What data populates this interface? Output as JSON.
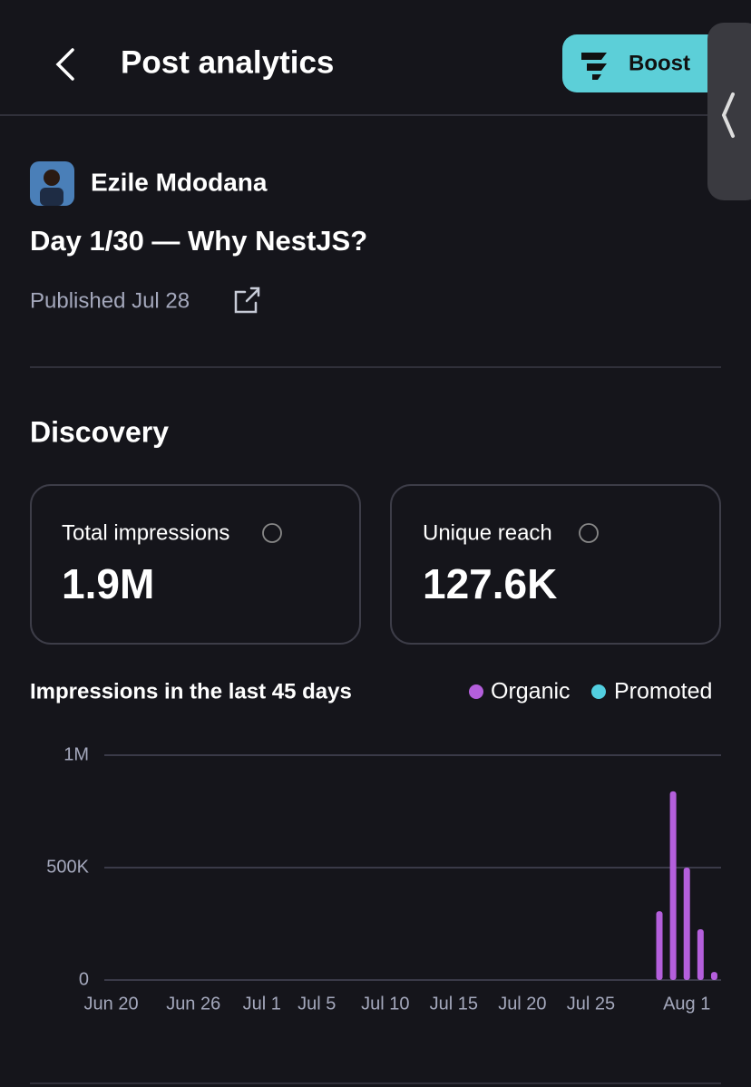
{
  "header": {
    "title": "Post analytics",
    "boost": "Boost"
  },
  "post": {
    "author": "Ezile Mdodana",
    "title": "Day 1/30 — Why NestJS?",
    "published": "Published Jul 28"
  },
  "discovery": {
    "title": "Discovery",
    "metrics": [
      {
        "label": "Total impressions",
        "value": "1.9M"
      },
      {
        "label": "Unique reach",
        "value": "127.6K"
      }
    ]
  },
  "chart_data": {
    "type": "bar",
    "title": "Impressions in the last 45 days",
    "categories": [
      "Jun 20",
      null,
      null,
      null,
      null,
      null,
      "Jun 26",
      null,
      null,
      null,
      null,
      "Jul 1",
      null,
      null,
      null,
      "Jul 5",
      null,
      null,
      null,
      null,
      "Jul 10",
      null,
      null,
      null,
      null,
      "Jul 15",
      null,
      null,
      null,
      null,
      "Jul 20",
      null,
      null,
      null,
      null,
      "Jul 25",
      null,
      null,
      null,
      null,
      null,
      null,
      "Aug 1",
      null,
      null
    ],
    "series": [
      {
        "name": "Organic",
        "color": "#b45fdc",
        "values": [
          0,
          0,
          0,
          0,
          0,
          0,
          0,
          0,
          0,
          0,
          0,
          0,
          0,
          0,
          0,
          0,
          0,
          0,
          0,
          0,
          0,
          0,
          0,
          0,
          0,
          0,
          0,
          0,
          0,
          0,
          0,
          0,
          0,
          0,
          0,
          0,
          0,
          0,
          0,
          0,
          306000,
          839000,
          500000,
          226000,
          36000
        ]
      },
      {
        "name": "Promoted",
        "color": "#52cfe0",
        "values": [
          0,
          0,
          0,
          0,
          0,
          0,
          0,
          0,
          0,
          0,
          0,
          0,
          0,
          0,
          0,
          0,
          0,
          0,
          0,
          0,
          0,
          0,
          0,
          0,
          0,
          0,
          0,
          0,
          0,
          0,
          0,
          0,
          0,
          0,
          0,
          0,
          0,
          0,
          0,
          0,
          0,
          0,
          0,
          0,
          0
        ]
      }
    ],
    "ylim": [
      0,
      1000000
    ],
    "yticks": [
      0,
      {
        "value": 500000,
        "label": "500K"
      },
      {
        "value": 1000000,
        "label": "1M"
      }
    ],
    "grid": true
  }
}
